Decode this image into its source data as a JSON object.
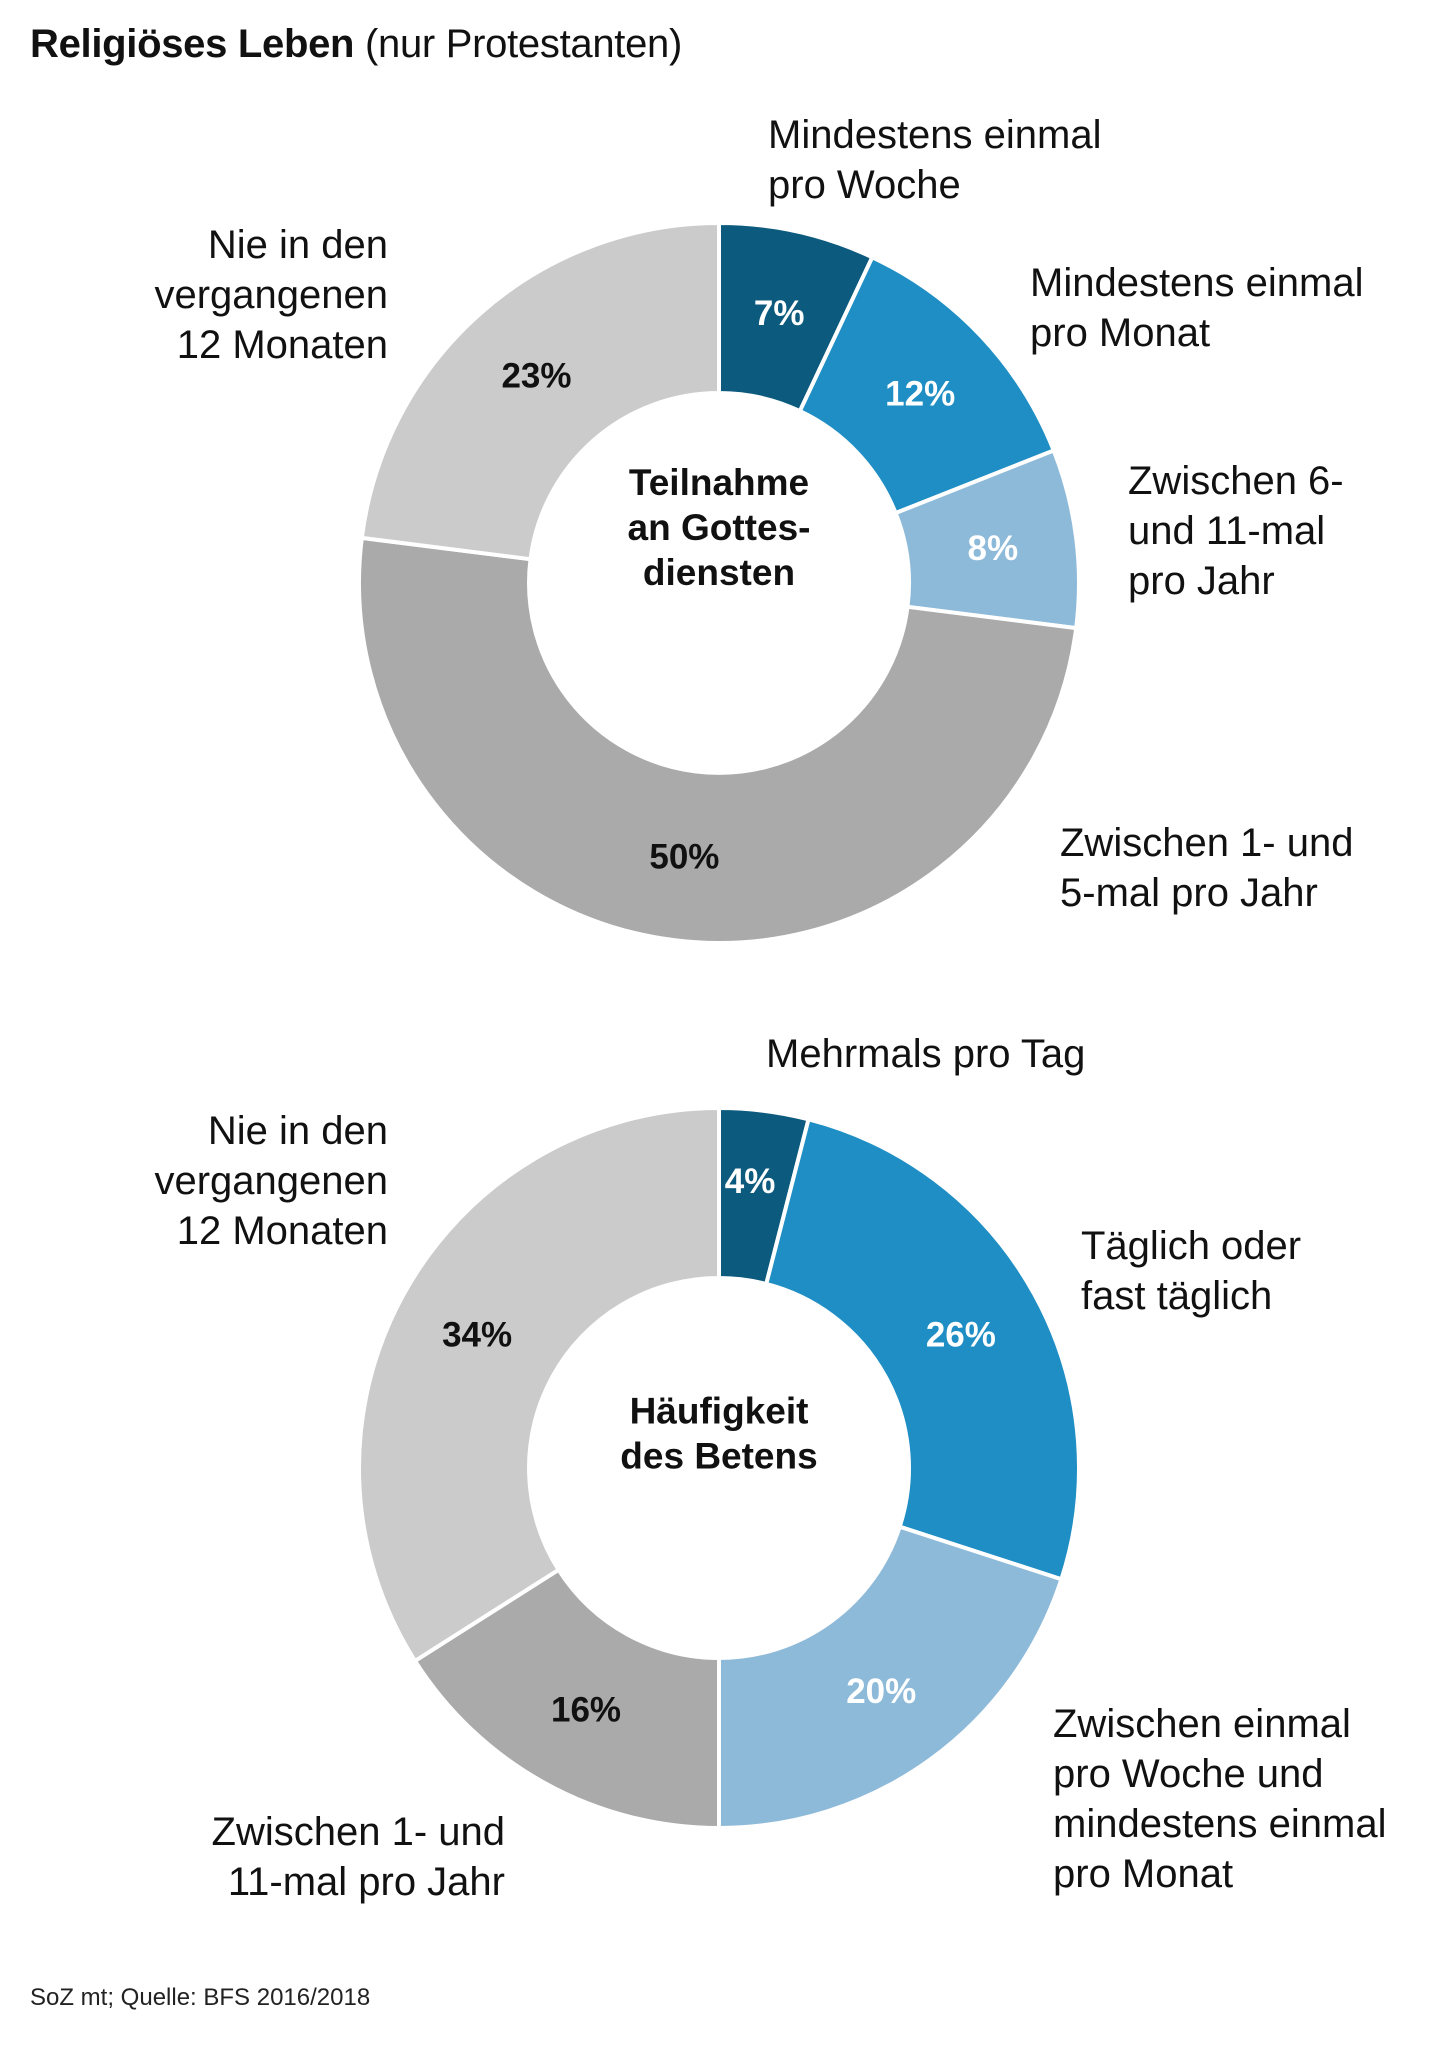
{
  "header": {
    "title_bold": "Religiöses Leben",
    "title_rest": "(nur Protestanten)"
  },
  "source": "SoZ mt; Quelle: BFS 2016/2018",
  "chart_data": [
    {
      "type": "pie",
      "variant": "donut",
      "center_label": [
        "Teilnahme",
        "an Gottes-",
        "diensten"
      ],
      "categories": [
        "Mindestens einmal pro Woche",
        "Mindestens einmal pro Monat",
        "Zwischen 6- und 11-mal pro Jahr",
        "Zwischen 1- und 5-mal pro Jahr",
        "Nie in den vergangenen 12 Monaten"
      ],
      "values": [
        7,
        12,
        8,
        50,
        23
      ],
      "value_labels": [
        "7%",
        "12%",
        "8%",
        "50%",
        "23%"
      ],
      "label_lines": [
        [
          "Mindestens einmal",
          "pro Woche"
        ],
        [
          "Mindestens einmal",
          "pro Monat"
        ],
        [
          "Zwischen 6-",
          "und 11-mal",
          "pro Jahr"
        ],
        [
          "Zwischen 1- und",
          "5-mal pro Jahr"
        ],
        [
          "Nie in den",
          "vergangenen",
          "12 Monaten"
        ]
      ],
      "colors": [
        "#0c5a7e",
        "#1f8ec4",
        "#8ebad9",
        "#aaaaaa",
        "#cbcbcb"
      ],
      "value_label_colors": [
        "#ffffff",
        "#ffffff",
        "#ffffff",
        "#111111",
        "#111111"
      ]
    },
    {
      "type": "pie",
      "variant": "donut",
      "center_label": [
        "Häufigkeit",
        "des Betens"
      ],
      "categories": [
        "Mehrmals pro Tag",
        "Täglich oder fast täglich",
        "Zwischen einmal pro Woche und mindestens einmal pro Monat",
        "Zwischen 1- und 11-mal pro Jahr",
        "Nie in den vergangenen 12 Monaten"
      ],
      "values": [
        4,
        26,
        20,
        16,
        34
      ],
      "value_labels": [
        "4%",
        "26%",
        "20%",
        "16%",
        "34%"
      ],
      "label_lines": [
        [
          "Mehrmals pro Tag"
        ],
        [
          "Täglich oder",
          "fast täglich"
        ],
        [
          "Zwischen einmal",
          "pro Woche und",
          "mindestens einmal",
          "pro Monat"
        ],
        [
          "Zwischen 1- und",
          "11-mal pro Jahr"
        ],
        [
          "Nie in den",
          "vergangenen",
          "12 Monaten"
        ]
      ],
      "colors": [
        "#0c5a7e",
        "#1f8ec4",
        "#8ebad9",
        "#aaaaaa",
        "#cbcbcb"
      ],
      "value_label_colors": [
        "#ffffff",
        "#ffffff",
        "#ffffff",
        "#111111",
        "#111111"
      ]
    }
  ]
}
